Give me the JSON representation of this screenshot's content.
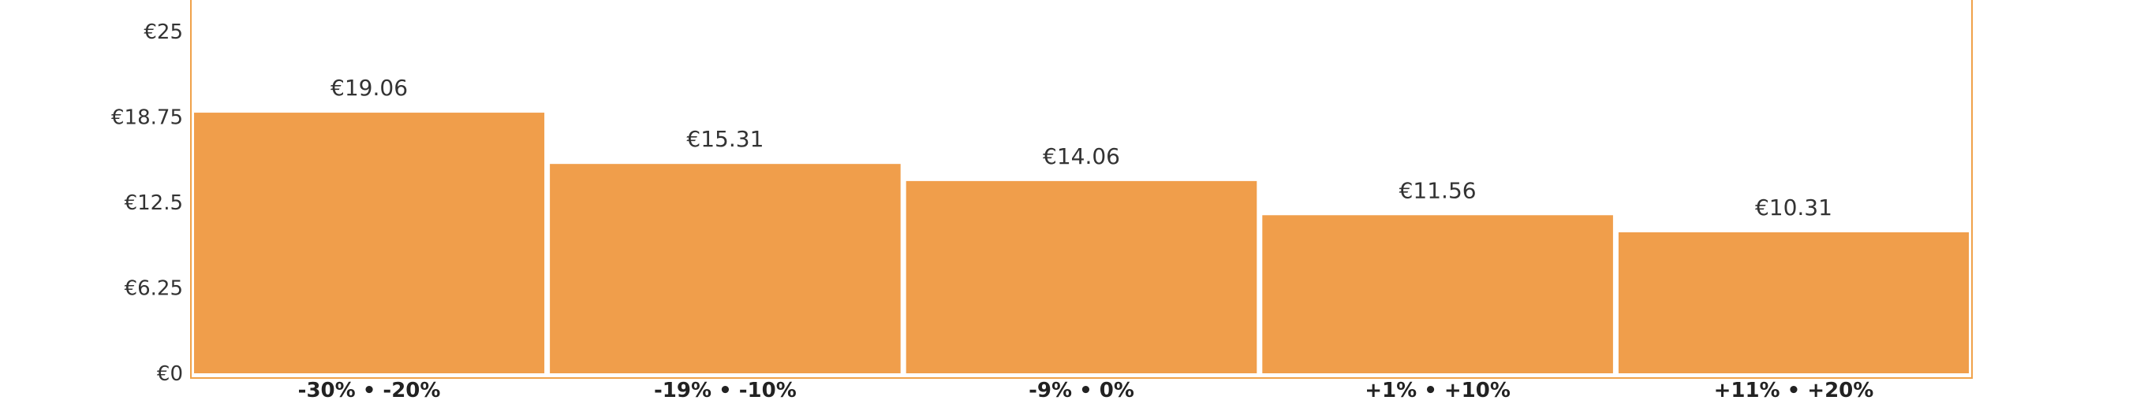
{
  "chart_data": {
    "type": "bar",
    "categories": [
      "-30% • -20%",
      "-19% • -10%",
      "-9% • 0%",
      "+1% • +10%",
      "+11% • +20%"
    ],
    "values": [
      19.06,
      15.31,
      14.06,
      11.56,
      10.31
    ],
    "value_labels": [
      "€19.06",
      "€15.31",
      "€14.06",
      "€11.56",
      "€10.31"
    ],
    "yticks": [
      0,
      6.25,
      12.5,
      18.75,
      25
    ],
    "ytick_labels": [
      "€0",
      "€6.25",
      "€12.5",
      "€18.75",
      "€25"
    ],
    "ylim": [
      0,
      27.3
    ],
    "title": "",
    "xlabel": "",
    "ylabel": "",
    "grid": false,
    "bar_color": "#F09E4B",
    "frame_color": "#F0A24A"
  }
}
